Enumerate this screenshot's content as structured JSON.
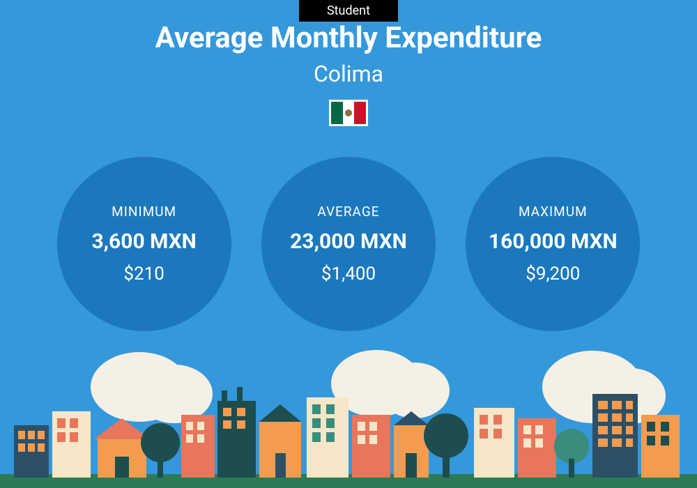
{
  "badge": {
    "text": "Student"
  },
  "header": {
    "title": "Average Monthly Expenditure",
    "location": "Colima"
  },
  "flag": {
    "stripes": [
      "#006847",
      "#ffffff",
      "#ce1126"
    ],
    "border_color": "#ffffff"
  },
  "colors": {
    "background": "#3498db",
    "circle": "#1b78bd",
    "badge_bg": "#000000",
    "text": "#ffffff",
    "city_dark": "#1d4d4f",
    "city_orange": "#f39c4f",
    "city_coral": "#e8765c",
    "city_cream": "#f5e6c8",
    "city_navy": "#2c5066",
    "city_teal": "#3a8c7c",
    "cloud": "#f5f0e6",
    "ground": "#2d7a56"
  },
  "stats": [
    {
      "label": "MINIMUM",
      "value_mxn": "3,600 MXN",
      "value_usd": "$210"
    },
    {
      "label": "AVERAGE",
      "value_mxn": "23,000 MXN",
      "value_usd": "$1,400"
    },
    {
      "label": "MAXIMUM",
      "value_mxn": "160,000 MXN",
      "value_usd": "$9,200"
    }
  ]
}
